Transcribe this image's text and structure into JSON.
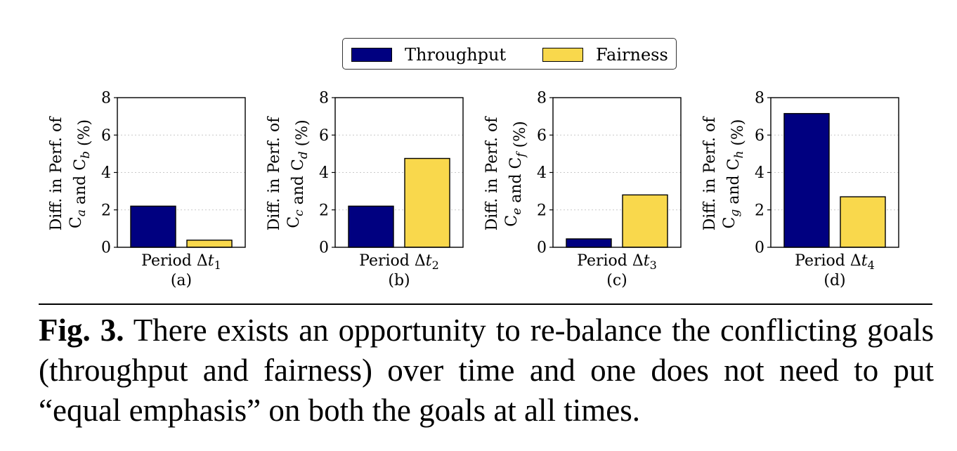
{
  "legend": {
    "items": [
      {
        "label": "Throughput",
        "color": "#000080"
      },
      {
        "label": "Fairness",
        "color": "#f9d84c"
      }
    ]
  },
  "chart_data": [
    {
      "type": "bar",
      "panel": "(a)",
      "categories": [
        "Period Δt₁"
      ],
      "xlabel": "Period Δt₁",
      "ylabel_line1": "Diff. in Perf. of",
      "ylabel_line2": "Cₐ and C_b (%)",
      "ylim": [
        0,
        8
      ],
      "yticks": [
        "0",
        "2",
        "4",
        "6",
        "8"
      ],
      "grid": true,
      "series": [
        {
          "name": "Throughput",
          "values": [
            2.2
          ]
        },
        {
          "name": "Fairness",
          "values": [
            0.38
          ]
        }
      ]
    },
    {
      "type": "bar",
      "panel": "(b)",
      "categories": [
        "Period Δt₂"
      ],
      "xlabel": "Period Δt₂",
      "ylabel_line1": "Diff. in Perf. of",
      "ylabel_line2": "C_c and C_d (%)",
      "ylim": [
        0,
        8
      ],
      "yticks": [
        "0",
        "2",
        "4",
        "6",
        "8"
      ],
      "grid": true,
      "series": [
        {
          "name": "Throughput",
          "values": [
            2.2
          ]
        },
        {
          "name": "Fairness",
          "values": [
            4.75
          ]
        }
      ]
    },
    {
      "type": "bar",
      "panel": "(c)",
      "categories": [
        "Period Δt₃"
      ],
      "xlabel": "Period Δt₃",
      "ylabel_line1": "Diff. in Perf. of",
      "ylabel_line2": "C_e and C_f (%)",
      "ylim": [
        0,
        8
      ],
      "yticks": [
        "0",
        "2",
        "4",
        "6",
        "8"
      ],
      "grid": true,
      "series": [
        {
          "name": "Throughput",
          "values": [
            0.45
          ]
        },
        {
          "name": "Fairness",
          "values": [
            2.8
          ]
        }
      ]
    },
    {
      "type": "bar",
      "panel": "(d)",
      "categories": [
        "Period Δt₄"
      ],
      "xlabel": "Period Δt₄",
      "ylabel_line1": "Diff. in Perf. of",
      "ylabel_line2": "C_g and C_h (%)",
      "ylim": [
        0,
        8
      ],
      "yticks": [
        "0",
        "2",
        "4",
        "6",
        "8"
      ],
      "grid": true,
      "series": [
        {
          "name": "Throughput",
          "values": [
            7.15
          ]
        },
        {
          "name": "Fairness",
          "values": [
            2.7
          ]
        }
      ]
    }
  ],
  "caption": {
    "label": "Fig. 3.",
    "text": "There exists an opportunity to re-balance the conflicting goals (throughput and fairness) over time and one does not need to put “equal emphasis” on both the goals at all times."
  }
}
